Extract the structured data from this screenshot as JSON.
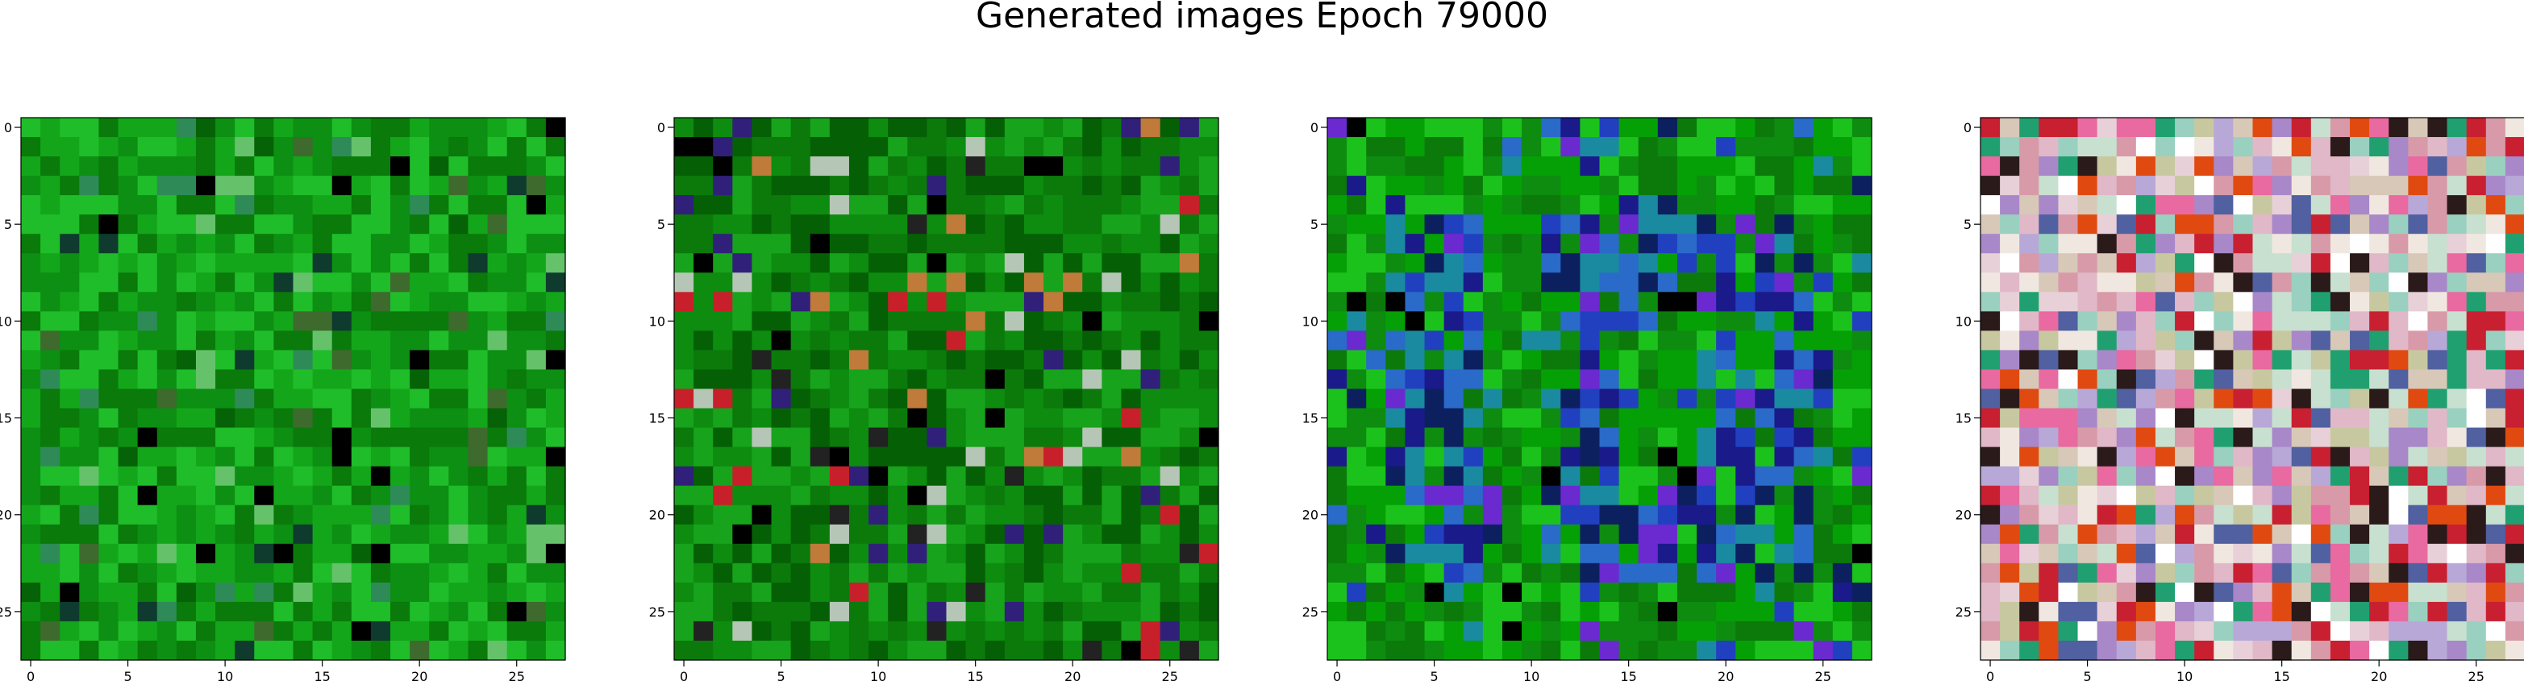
{
  "title": "Generated images Epoch 79000",
  "chart_data": [
    {
      "type": "heatmap",
      "title": "",
      "xlabel": "",
      "ylabel": "",
      "grid_size": [
        28,
        28
      ],
      "xlim": [
        -0.5,
        27.5
      ],
      "ylim": [
        27.5,
        -0.5
      ],
      "xticks": [
        0,
        5,
        10,
        15,
        20,
        25
      ],
      "yticks": [
        0,
        5,
        10,
        15,
        20,
        25
      ],
      "dominant_color": "#0a8a10",
      "palette": [
        "#0a7a0a",
        "#0c8f12",
        "#14a61a",
        "#1fbd2a",
        "#066206",
        "#2e8b57",
        "#0e3b2e",
        "#000000",
        "#3e6a2e",
        "#65c26a"
      ]
    },
    {
      "type": "heatmap",
      "title": "",
      "xlabel": "",
      "ylabel": "",
      "grid_size": [
        28,
        28
      ],
      "xlim": [
        -0.5,
        27.5
      ],
      "ylim": [
        27.5,
        -0.5
      ],
      "xticks": [
        0,
        5,
        10,
        15,
        20,
        25
      ],
      "yticks": [
        0,
        5,
        10,
        15,
        20,
        25
      ],
      "dominant_color": "#0a7c0e",
      "palette": [
        "#0b7a0b",
        "#0d8c10",
        "#17a31b",
        "#056005",
        "#222222",
        "#000000",
        "#c07a3a",
        "#c8202a",
        "#30207a",
        "#b6c6b6"
      ]
    },
    {
      "type": "heatmap",
      "title": "",
      "xlabel": "",
      "ylabel": "",
      "grid_size": [
        28,
        28
      ],
      "xlim": [
        -0.5,
        27.5
      ],
      "ylim": [
        27.5,
        -0.5
      ],
      "xticks": [
        0,
        5,
        10,
        15,
        20,
        25
      ],
      "yticks": [
        0,
        5,
        10,
        15,
        20,
        25
      ],
      "dominant_color": "#0a7a0c",
      "palette": [
        "#0b7a0b",
        "#0d8c10",
        "#1cc21c",
        "#05a005",
        "#2140c0",
        "#1a1a8a",
        "#6a2ad0",
        "#2a6ac8",
        "#1a8aa0",
        "#0c2060",
        "#000000"
      ]
    },
    {
      "type": "heatmap",
      "title": "",
      "xlabel": "",
      "ylabel": "",
      "grid_size": [
        28,
        28
      ],
      "xlim": [
        -0.5,
        27.5
      ],
      "ylim": [
        27.5,
        -0.5
      ],
      "xticks": [
        0,
        5,
        10,
        15,
        20,
        25
      ],
      "yticks": [
        0,
        5,
        10,
        15,
        20,
        25
      ],
      "dominant_color": "#d8c8d0",
      "palette": [
        "#e8d0d8",
        "#d8c8b8",
        "#c8e0d0",
        "#b8a8d8",
        "#e0b8c8",
        "#f0e8e0",
        "#a888c8",
        "#d89aa8",
        "#9ad0c0",
        "#c8c8a0",
        "#e86aa0",
        "#20a070",
        "#ffffff",
        "#2a1a1a",
        "#c82030",
        "#e04a10",
        "#5060a0"
      ]
    }
  ]
}
